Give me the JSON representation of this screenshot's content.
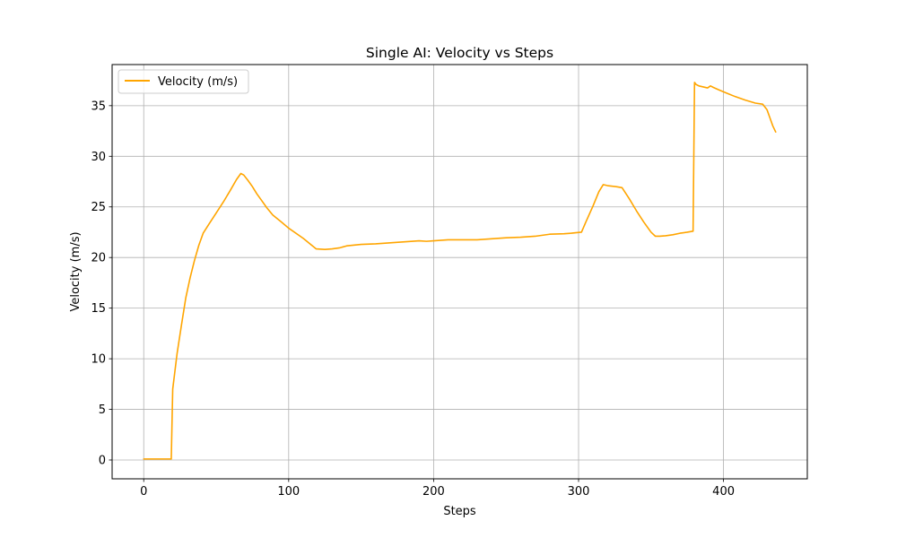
{
  "chart_data": {
    "type": "line",
    "title": "Single AI: Velocity vs Steps",
    "xlabel": "Steps",
    "ylabel": "Velocity (m/s)",
    "xlim": [
      -21.8,
      457.8
    ],
    "ylim": [
      -1.86,
      39.06
    ],
    "xticks": [
      0,
      100,
      200,
      300,
      400
    ],
    "yticks": [
      0,
      5,
      10,
      15,
      20,
      25,
      30,
      35
    ],
    "grid": true,
    "legend": {
      "placement": "upper-left",
      "entries": [
        "Velocity (m/s)"
      ]
    },
    "series": [
      {
        "name": "Velocity (m/s)",
        "color": "#ffa500",
        "x": [
          0,
          5,
          10,
          15,
          19,
          20,
          23,
          26,
          29,
          32,
          35,
          38,
          41,
          45,
          50,
          55,
          60,
          64,
          67,
          69,
          72,
          75,
          78,
          81,
          85,
          89,
          95,
          100,
          110,
          119,
          125,
          130,
          135,
          140,
          150,
          160,
          170,
          180,
          190,
          195,
          200,
          210,
          220,
          230,
          240,
          250,
          260,
          270,
          280,
          290,
          295,
          298,
          302,
          305,
          310,
          314,
          317,
          320,
          326,
          330,
          335,
          340,
          345,
          350,
          353,
          356,
          360,
          365,
          370,
          375,
          379,
          380,
          381,
          383,
          386,
          389,
          391,
          393,
          397,
          402,
          408,
          415,
          422,
          427,
          430,
          432,
          434,
          436
        ],
        "values": [
          0.1,
          0.1,
          0.1,
          0.1,
          0.1,
          7.0,
          10.5,
          13.3,
          16.0,
          18.0,
          19.7,
          21.2,
          22.4,
          23.3,
          24.4,
          25.5,
          26.7,
          27.7,
          28.3,
          28.15,
          27.6,
          27.0,
          26.3,
          25.7,
          24.9,
          24.2,
          23.5,
          22.9,
          21.9,
          20.85,
          20.8,
          20.85,
          20.95,
          21.15,
          21.3,
          21.35,
          21.45,
          21.55,
          21.65,
          21.6,
          21.65,
          21.75,
          21.75,
          21.75,
          21.85,
          21.95,
          22.0,
          22.1,
          22.3,
          22.35,
          22.4,
          22.45,
          22.5,
          23.5,
          25.1,
          26.5,
          27.2,
          27.1,
          27.0,
          26.9,
          25.8,
          24.6,
          23.5,
          22.5,
          22.1,
          22.1,
          22.15,
          22.25,
          22.4,
          22.5,
          22.6,
          37.3,
          37.1,
          36.95,
          36.85,
          36.75,
          36.95,
          36.8,
          36.55,
          36.25,
          35.9,
          35.55,
          35.25,
          35.15,
          34.6,
          33.8,
          33.0,
          32.4
        ]
      }
    ]
  }
}
